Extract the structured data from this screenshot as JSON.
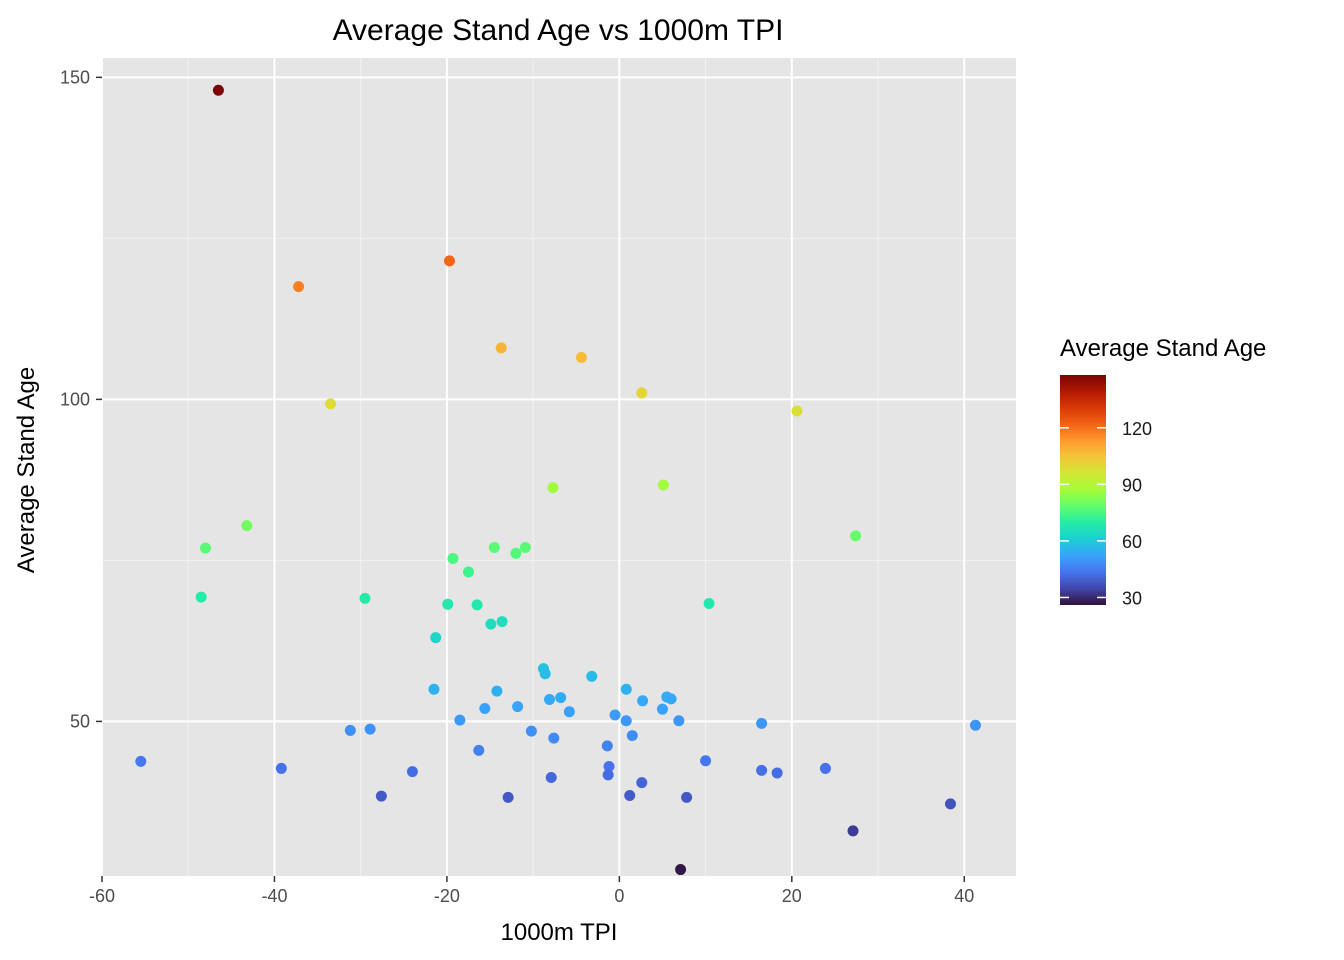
{
  "chart_data": {
    "type": "scatter",
    "title": "Average Stand Age vs 1000m TPI",
    "xlabel": "1000m TPI",
    "ylabel": "Average Stand Age",
    "xlim": [
      -60,
      46
    ],
    "ylim": [
      26,
      153
    ],
    "x_ticks": [
      -60,
      -40,
      -20,
      0,
      20,
      40
    ],
    "x_tick_labels": [
      "-60",
      "-40",
      "-20",
      "0",
      "20",
      "40"
    ],
    "y_ticks": [
      50,
      100,
      150
    ],
    "y_tick_labels": [
      "50",
      "100",
      "150"
    ],
    "grid": true,
    "panel_background": "#e5e5e5",
    "legend": {
      "title": "Average Stand Age",
      "placement": "right",
      "type": "colorbar",
      "range": [
        26,
        148
      ],
      "ticks": [
        30,
        60,
        90,
        120
      ],
      "tick_labels": [
        "30",
        "60",
        "90",
        "120"
      ],
      "colormap": "turbo",
      "color_stops": [
        "#30123b",
        "#4145ab",
        "#4675ed",
        "#39a2fc",
        "#1bcfd4",
        "#24eca6",
        "#61fc6c",
        "#a4fc3b",
        "#d1e834",
        "#f3c63a",
        "#fe9b2d",
        "#f36315",
        "#d93806",
        "#b11901",
        "#7a0402"
      ]
    },
    "points": [
      {
        "x": -46.5,
        "y": 148
      },
      {
        "x": -19.7,
        "y": 121.5
      },
      {
        "x": -37.2,
        "y": 117.5
      },
      {
        "x": -13.7,
        "y": 108
      },
      {
        "x": -4.4,
        "y": 106.5
      },
      {
        "x": 2.6,
        "y": 101
      },
      {
        "x": -33.5,
        "y": 99.3
      },
      {
        "x": 20.6,
        "y": 98.2
      },
      {
        "x": -7.7,
        "y": 86.3
      },
      {
        "x": 5.1,
        "y": 86.7
      },
      {
        "x": -43.2,
        "y": 80.4
      },
      {
        "x": 27.4,
        "y": 78.8
      },
      {
        "x": -48.0,
        "y": 76.9
      },
      {
        "x": -14.5,
        "y": 77.0
      },
      {
        "x": -10.9,
        "y": 77.0
      },
      {
        "x": -12.0,
        "y": 76.1
      },
      {
        "x": -19.3,
        "y": 75.3
      },
      {
        "x": -17.5,
        "y": 73.2
      },
      {
        "x": -48.5,
        "y": 69.3
      },
      {
        "x": -29.5,
        "y": 69.1
      },
      {
        "x": -19.9,
        "y": 68.2
      },
      {
        "x": -16.5,
        "y": 68.1
      },
      {
        "x": 10.4,
        "y": 68.3
      },
      {
        "x": -14.9,
        "y": 65.1
      },
      {
        "x": -13.6,
        "y": 65.5
      },
      {
        "x": -21.3,
        "y": 63.0
      },
      {
        "x": -8.8,
        "y": 58.2
      },
      {
        "x": -8.6,
        "y": 57.4
      },
      {
        "x": -3.2,
        "y": 57.0
      },
      {
        "x": -21.5,
        "y": 55.0
      },
      {
        "x": -14.2,
        "y": 54.7
      },
      {
        "x": 0.8,
        "y": 55.0
      },
      {
        "x": -8.1,
        "y": 53.4
      },
      {
        "x": -6.8,
        "y": 53.7
      },
      {
        "x": 5.5,
        "y": 53.8
      },
      {
        "x": 6.0,
        "y": 53.5
      },
      {
        "x": 2.7,
        "y": 53.2
      },
      {
        "x": -15.6,
        "y": 52.0
      },
      {
        "x": -11.8,
        "y": 52.3
      },
      {
        "x": -5.8,
        "y": 51.5
      },
      {
        "x": -0.5,
        "y": 51.0
      },
      {
        "x": 5.0,
        "y": 51.9
      },
      {
        "x": -18.5,
        "y": 50.2
      },
      {
        "x": 0.8,
        "y": 50.1
      },
      {
        "x": 6.9,
        "y": 50.1
      },
      {
        "x": 16.5,
        "y": 49.7
      },
      {
        "x": 41.3,
        "y": 49.4
      },
      {
        "x": -31.2,
        "y": 48.6
      },
      {
        "x": -28.9,
        "y": 48.8
      },
      {
        "x": -10.2,
        "y": 48.5
      },
      {
        "x": 1.5,
        "y": 47.8
      },
      {
        "x": -7.6,
        "y": 47.4
      },
      {
        "x": -1.4,
        "y": 46.2
      },
      {
        "x": -16.3,
        "y": 45.5
      },
      {
        "x": -55.5,
        "y": 43.8
      },
      {
        "x": 10.0,
        "y": 43.9
      },
      {
        "x": -39.2,
        "y": 42.7
      },
      {
        "x": -1.2,
        "y": 43.0
      },
      {
        "x": 23.9,
        "y": 42.7
      },
      {
        "x": 16.5,
        "y": 42.4
      },
      {
        "x": 18.3,
        "y": 42.0
      },
      {
        "x": -24.0,
        "y": 42.2
      },
      {
        "x": -1.3,
        "y": 41.7
      },
      {
        "x": -7.9,
        "y": 41.3
      },
      {
        "x": 2.6,
        "y": 40.5
      },
      {
        "x": -27.6,
        "y": 38.4
      },
      {
        "x": 1.2,
        "y": 38.5
      },
      {
        "x": -12.9,
        "y": 38.2
      },
      {
        "x": 7.8,
        "y": 38.2
      },
      {
        "x": 38.4,
        "y": 37.2
      },
      {
        "x": 27.1,
        "y": 33.0
      },
      {
        "x": 7.1,
        "y": 27.0
      }
    ]
  }
}
